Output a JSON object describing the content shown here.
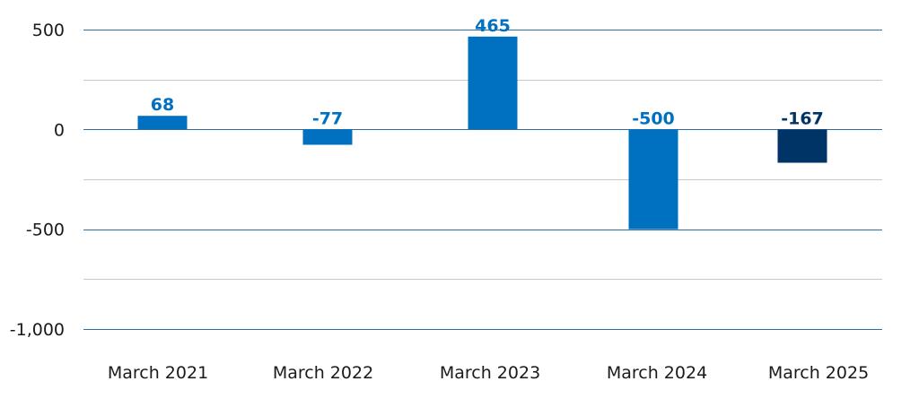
{
  "chart_data": {
    "type": "bar",
    "categories": [
      "March 2021",
      "March 2022",
      "March 2023",
      "March 2024",
      "March 2025"
    ],
    "values": [
      68,
      -77,
      465,
      -500,
      -167
    ],
    "data_labels": [
      "68",
      "-77",
      "465",
      "-500",
      "-167"
    ],
    "y_ticks": [
      500,
      0,
      -500,
      -1000
    ],
    "y_tick_labels": [
      "500",
      "0",
      "-500",
      "-1,000"
    ],
    "ylim": [
      -1000,
      500
    ],
    "minor_gridlines": [
      250,
      -250,
      -750
    ],
    "grid": true,
    "bar_colors": [
      "#0070c0",
      "#0070c0",
      "#0070c0",
      "#0070c0",
      "#003366"
    ],
    "label_colors": [
      "#0070c0",
      "#0070c0",
      "#0070c0",
      "#0070c0",
      "#003366"
    ],
    "major_grid_color": "#2e6da4",
    "minor_grid_color": "#c8c8c8"
  }
}
